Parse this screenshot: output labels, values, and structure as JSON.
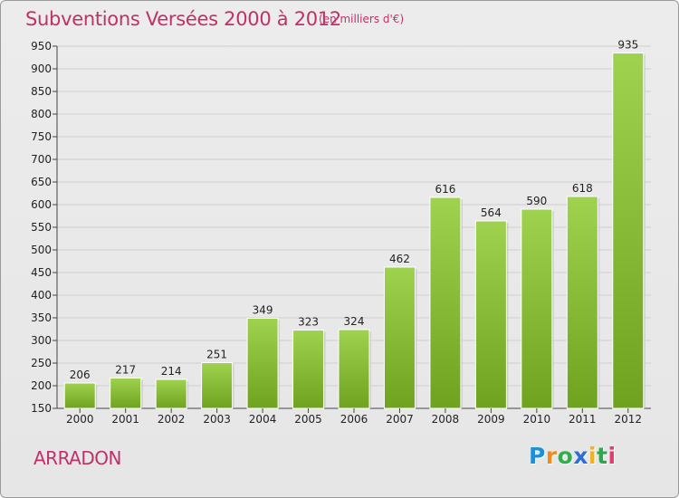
{
  "title": "Subventions Versées 2000 à 2012",
  "subtitle": "(en milliers d'€)",
  "commune": "ARRADON",
  "logo": {
    "letters": [
      "P",
      "r",
      "o",
      "x",
      "i",
      "t",
      "i"
    ],
    "colors": [
      "#1e8fd8",
      "#f28a1c",
      "#2bb04a",
      "#2e6fd6",
      "#f2b01c",
      "#2aa84a",
      "#e53d6b"
    ]
  },
  "colors": {
    "accent": "#c0306a",
    "bar_top": "#9fd24f",
    "bar_bottom": "#6fa21f"
  },
  "chart_data": {
    "type": "bar",
    "categories": [
      "2000",
      "2001",
      "2002",
      "2003",
      "2004",
      "2005",
      "2006",
      "2007",
      "2008",
      "2009",
      "2010",
      "2011",
      "2012"
    ],
    "values": [
      206,
      217,
      214,
      251,
      349,
      323,
      324,
      462,
      616,
      564,
      590,
      618,
      935
    ],
    "ylim": [
      150,
      950
    ],
    "yticks": [
      150,
      200,
      250,
      300,
      350,
      400,
      450,
      500,
      550,
      600,
      650,
      700,
      750,
      800,
      850,
      900,
      950
    ],
    "grid": true,
    "legend": "none"
  }
}
